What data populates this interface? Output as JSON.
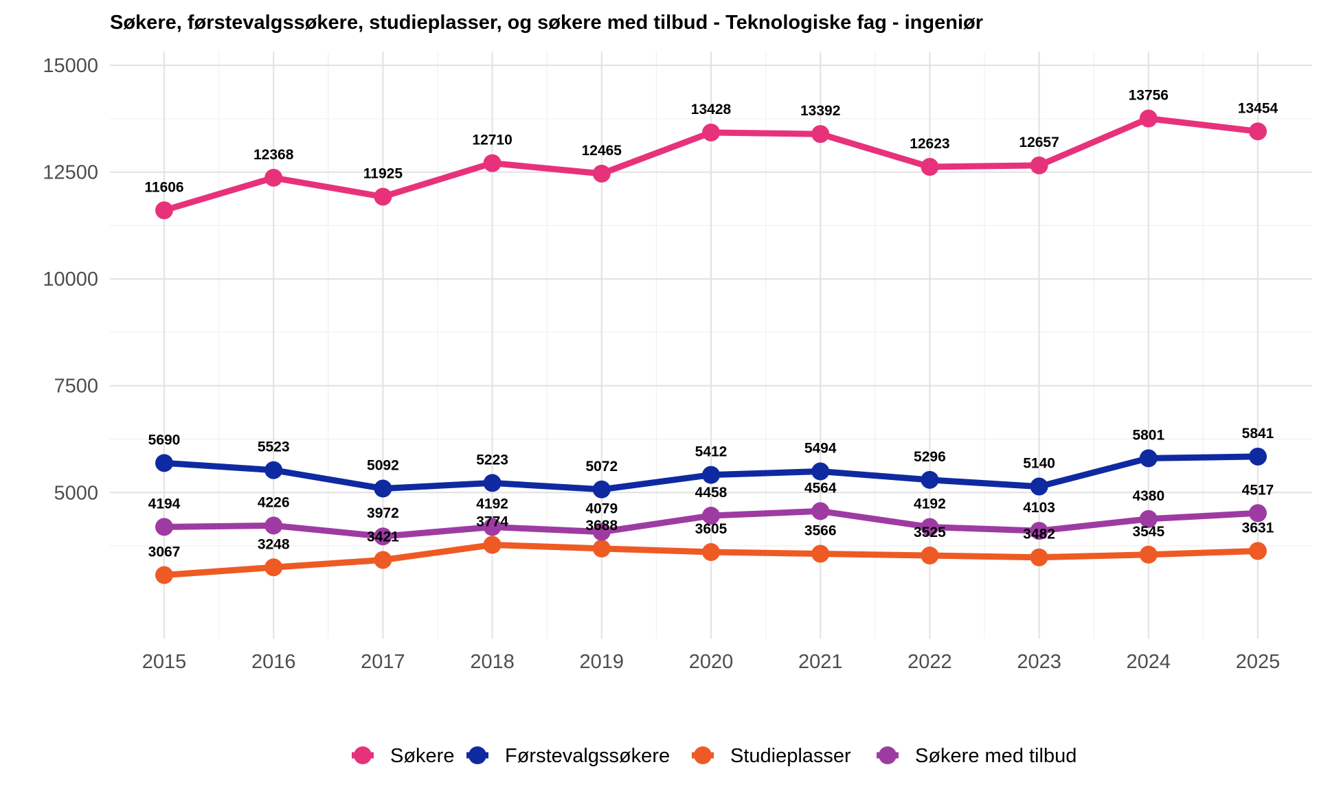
{
  "chart_data": {
    "type": "line",
    "title": "Søkere, førstevalgssøkere, studieplasser, og søkere med tilbud - Teknologiske fag - ingeniør",
    "xlabel": "",
    "ylabel": "",
    "x": [
      "2015",
      "2016",
      "2017",
      "2018",
      "2019",
      "2020",
      "2021",
      "2022",
      "2023",
      "2024",
      "2025"
    ],
    "ylim": [
      1500,
      15300
    ],
    "yticks": [
      5000,
      7500,
      10000,
      12500,
      15000
    ],
    "grid": true,
    "legend_position": "bottom",
    "series": [
      {
        "name": "Søkere",
        "color": "#e7327b",
        "values": [
          11606,
          12368,
          11925,
          12710,
          12465,
          13428,
          13392,
          12623,
          12657,
          13756,
          13454
        ]
      },
      {
        "name": "Førstevalgssøkere",
        "color": "#0f2aa0",
        "values": [
          5690,
          5523,
          5092,
          5223,
          5072,
          5412,
          5494,
          5296,
          5140,
          5801,
          5841
        ]
      },
      {
        "name": "Studieplasser",
        "color": "#ee5a24",
        "values": [
          3067,
          3248,
          3421,
          3774,
          3688,
          3605,
          3566,
          3525,
          3482,
          3545,
          3631
        ]
      },
      {
        "name": "Søkere med tilbud",
        "color": "#9e3ba3",
        "values": [
          4194,
          4226,
          3972,
          4192,
          4079,
          4458,
          4564,
          4192,
          4103,
          4380,
          4517
        ]
      }
    ]
  }
}
